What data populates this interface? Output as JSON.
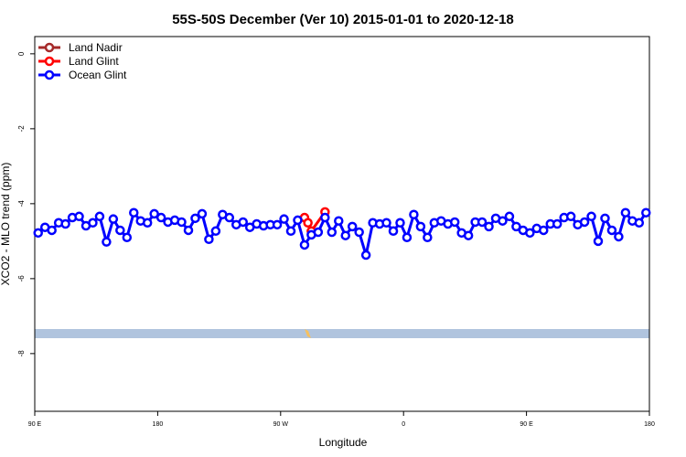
{
  "chart_data": {
    "type": "line",
    "title": "55S-50S December (Ver 10)   2015-01-01 to 2020-12-18",
    "x_label": "Longitude",
    "y_label": "XCO2 - MLO trend (ppm)",
    "xlim": [
      90,
      540
    ],
    "xticks": [
      {
        "value": 90,
        "label": "90 E"
      },
      180,
      {
        "value": 270,
        "label": "90 W"
      },
      {
        "value": 360,
        "label": "0"
      },
      {
        "value": 450,
        "label": "90 E"
      },
      {
        "value": 540,
        "label": "180"
      }
    ],
    "ylim": [
      -9.54,
      0.46
    ],
    "yticks": [
      0,
      -2,
      -4,
      -6,
      -8
    ],
    "legend": "top-left",
    "series": [
      {
        "name": "Land Nadir",
        "color": "#a52a2a",
        "x": [],
        "values": []
      },
      {
        "name": "Land Glint",
        "color": "#ff0000",
        "x": [
          287.5,
          290,
          292.5,
          302.5
        ],
        "values": [
          -4.37,
          -4.51,
          -4.73,
          -4.22
        ]
      },
      {
        "name": "Ocean Glint",
        "color": "#0000ff",
        "x": [
          92.5,
          97.5,
          102.5,
          107.5,
          112.5,
          117.5,
          122.5,
          127.5,
          132.5,
          137.5,
          142.5,
          147.5,
          152.5,
          157.5,
          162.5,
          167.5,
          172.5,
          177.5,
          182.5,
          187.5,
          192.5,
          197.5,
          202.5,
          207.5,
          212.5,
          217.5,
          222.5,
          227.5,
          232.5,
          237.5,
          242.5,
          247.5,
          252.5,
          257.5,
          262.5,
          267.5,
          272.5,
          277.5,
          282.5,
          287.5,
          292.5,
          297.5,
          302.5,
          307.5,
          312.5,
          317.5,
          322.5,
          327.5,
          332.5,
          337.5,
          342.5,
          347.5,
          352.5,
          357.5,
          362.5,
          367.5,
          372.5,
          377.5,
          382.5,
          387.5,
          392.5,
          397.5,
          402.5,
          407.5,
          412.5,
          417.5,
          422.5,
          427.5,
          432.5,
          437.5,
          442.5,
          447.5,
          452.5,
          457.5,
          462.5,
          467.5,
          472.5,
          477.5,
          482.5,
          487.5,
          492.5,
          497.5,
          502.5,
          507.5,
          512.5,
          517.5,
          522.5,
          527.5,
          532.5,
          537.5
        ],
        "values": [
          -4.78,
          -4.63,
          -4.71,
          -4.51,
          -4.54,
          -4.37,
          -4.34,
          -4.59,
          -4.51,
          -4.34,
          -5.02,
          -4.41,
          -4.71,
          -4.9,
          -4.24,
          -4.46,
          -4.51,
          -4.27,
          -4.37,
          -4.49,
          -4.44,
          -4.49,
          -4.71,
          -4.39,
          -4.27,
          -4.95,
          -4.73,
          -4.29,
          -4.37,
          -4.56,
          -4.49,
          -4.63,
          -4.54,
          -4.59,
          -4.56,
          -4.56,
          -4.41,
          -4.73,
          -4.44,
          -5.1,
          -4.83,
          -4.76,
          -4.37,
          -4.76,
          -4.46,
          -4.85,
          -4.61,
          -4.76,
          -5.37,
          -4.51,
          -4.54,
          -4.51,
          -4.73,
          -4.51,
          -4.9,
          -4.29,
          -4.61,
          -4.9,
          -4.51,
          -4.46,
          -4.54,
          -4.49,
          -4.78,
          -4.85,
          -4.49,
          -4.49,
          -4.61,
          -4.39,
          -4.46,
          -4.34,
          -4.61,
          -4.71,
          -4.78,
          -4.66,
          -4.71,
          -4.54,
          -4.54,
          -4.37,
          -4.34,
          -4.56,
          -4.49,
          -4.34,
          -5.0,
          -4.39,
          -4.71,
          -4.88,
          -4.24,
          -4.46,
          -4.51,
          -4.24
        ]
      }
    ]
  }
}
